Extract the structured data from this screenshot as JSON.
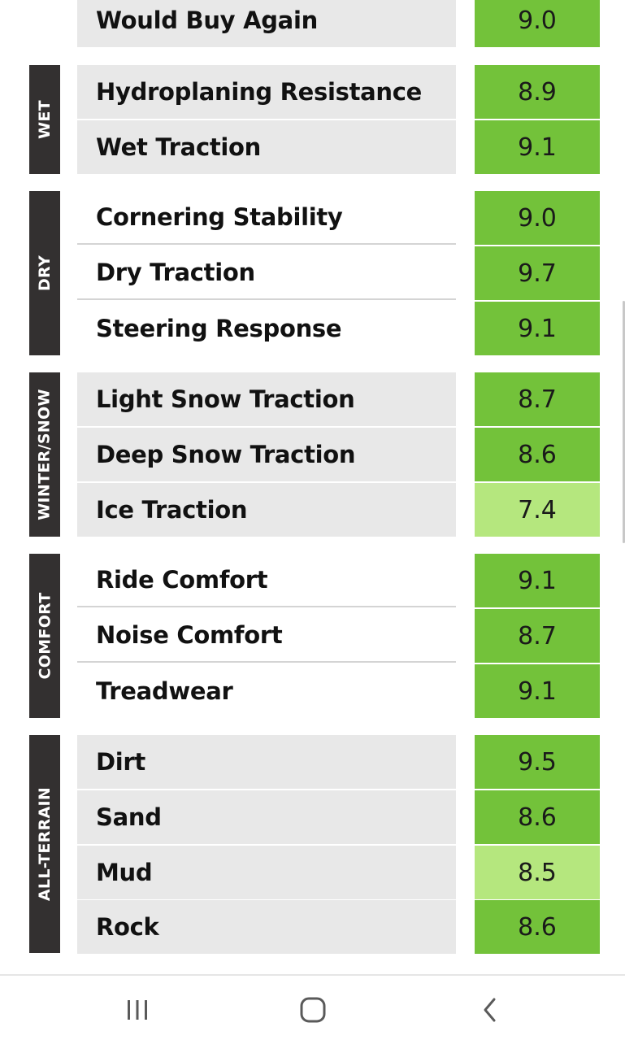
{
  "colors": {
    "score_high": "#73c23a",
    "score_low": "#b5e77e",
    "category_bg": "#333030"
  },
  "categories": [
    {
      "label": "WET"
    },
    {
      "label": "DRY"
    },
    {
      "label": "WINTER/SNOW"
    },
    {
      "label": "COMFORT"
    },
    {
      "label": "ALL-TERRAIN"
    }
  ],
  "rows": [
    {
      "label": "Would Buy Again",
      "score": "9.0",
      "tone": "high"
    },
    {
      "label": "Hydroplaning Resistance",
      "score": "8.9",
      "tone": "high"
    },
    {
      "label": "Wet Traction",
      "score": "9.1",
      "tone": "high"
    },
    {
      "label": "Cornering Stability",
      "score": "9.0",
      "tone": "high"
    },
    {
      "label": "Dry Traction",
      "score": "9.7",
      "tone": "high"
    },
    {
      "label": "Steering Response",
      "score": "9.1",
      "tone": "high"
    },
    {
      "label": "Light Snow Traction",
      "score": "8.7",
      "tone": "high"
    },
    {
      "label": "Deep Snow Traction",
      "score": "8.6",
      "tone": "high"
    },
    {
      "label": "Ice Traction",
      "score": "7.4",
      "tone": "low"
    },
    {
      "label": "Ride Comfort",
      "score": "9.1",
      "tone": "high"
    },
    {
      "label": "Noise Comfort",
      "score": "8.7",
      "tone": "high"
    },
    {
      "label": "Treadwear",
      "score": "9.1",
      "tone": "high"
    },
    {
      "label": "Dirt",
      "score": "9.5",
      "tone": "high"
    },
    {
      "label": "Sand",
      "score": "8.6",
      "tone": "high"
    },
    {
      "label": "Mud",
      "score": "8.5",
      "tone": "low"
    },
    {
      "label": "Rock",
      "score": "8.6",
      "tone": "high"
    }
  ],
  "navbar": {
    "recents_icon": "recent-apps-icon",
    "home_icon": "home-icon",
    "back_icon": "back-icon"
  }
}
